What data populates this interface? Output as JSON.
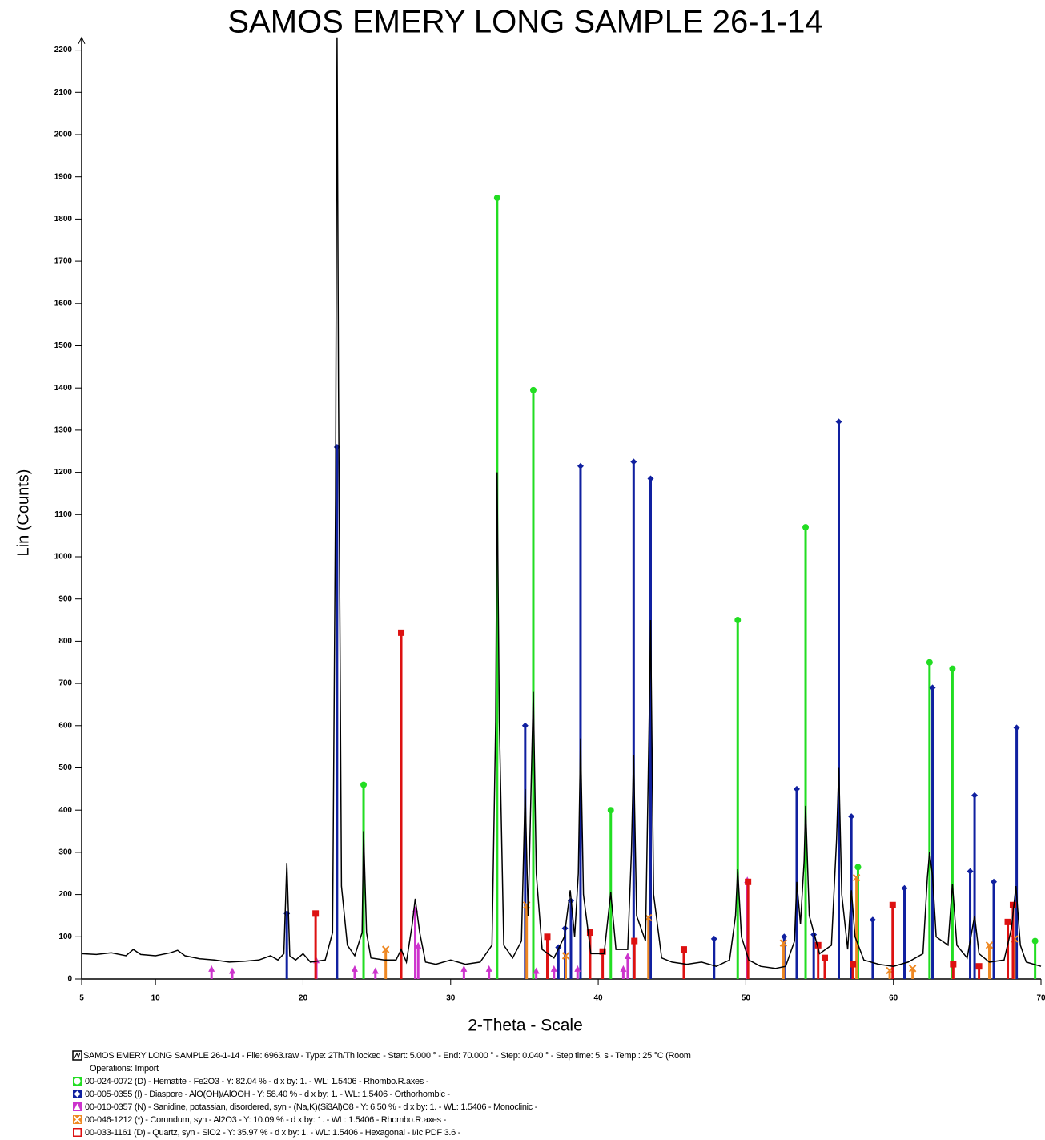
{
  "chart_data": {
    "type": "line",
    "title": "SAMOS EMERY LONG SAMPLE 26-1-14",
    "x_label": "2-Theta - Scale",
    "y_label": "Lin (Counts)",
    "xlim": [
      5,
      70
    ],
    "xticks": [
      5,
      10,
      20,
      30,
      40,
      50,
      60,
      70
    ],
    "ylim": [
      0,
      2230
    ],
    "yticks": [
      0,
      100,
      200,
      300,
      400,
      500,
      600,
      700,
      800,
      900,
      1000,
      1100,
      1200,
      1300,
      1400,
      1500,
      1600,
      1700,
      1800,
      1900,
      2000,
      2100,
      2200
    ],
    "x": [
      5,
      6,
      7,
      8,
      8.5,
      9,
      10,
      11,
      11.5,
      12,
      13,
      14,
      15,
      16,
      17,
      17.8,
      18.3,
      18.7,
      18.9,
      19.1,
      19.5,
      20,
      20.5,
      21.5,
      22,
      22.2,
      22.3,
      22.4,
      22.6,
      23,
      23.5,
      24,
      24.1,
      24.3,
      24.6,
      25.5,
      26.3,
      26.65,
      27,
      27.4,
      27.6,
      27.9,
      28.3,
      29,
      30,
      31,
      32,
      32.8,
      33.05,
      33.15,
      33.3,
      33.6,
      34.2,
      34.8,
      35.05,
      35.25,
      35.6,
      35.8,
      36.2,
      37,
      37.7,
      38.1,
      38.4,
      38.65,
      38.8,
      39,
      39.5,
      40.4,
      40.85,
      41.2,
      42,
      42.25,
      42.4,
      42.6,
      43.2,
      43.45,
      43.55,
      43.75,
      44.3,
      45,
      46,
      47,
      48,
      48.9,
      49.3,
      49.45,
      49.7,
      50.2,
      51,
      52,
      52.7,
      53.3,
      53.45,
      53.7,
      53.95,
      54.05,
      54.3,
      55,
      55.8,
      56.15,
      56.3,
      56.5,
      56.9,
      57.15,
      57.4,
      58,
      59,
      60,
      61,
      62,
      62.3,
      62.45,
      62.65,
      62.9,
      63.7,
      64,
      64.3,
      65,
      65.5,
      65.8,
      66.5,
      67.5,
      68,
      68.3,
      68.6,
      69,
      70
    ],
    "series": [
      {
        "name": "SAMOS EMERY LONG SAMPLE 26-1-14 - File: 6963.raw - Type: 2Th/Th locked - Start: 5.000 ° - End: 70.000 ° - Step: 0.040 ° - Step time: 5. s - Temp.: 25 °C (Room",
        "color": "#000000",
        "values": [
          60,
          58,
          62,
          55,
          70,
          58,
          55,
          62,
          68,
          55,
          48,
          45,
          40,
          42,
          45,
          55,
          45,
          60,
          275,
          55,
          45,
          60,
          40,
          45,
          110,
          1140,
          2240,
          1400,
          220,
          80,
          55,
          110,
          350,
          110,
          50,
          45,
          45,
          70,
          40,
          130,
          190,
          110,
          40,
          35,
          45,
          35,
          40,
          80,
          610,
          1200,
          610,
          80,
          50,
          90,
          450,
          150,
          680,
          250,
          70,
          50,
          100,
          210,
          100,
          250,
          570,
          200,
          60,
          60,
          205,
          70,
          70,
          300,
          530,
          150,
          90,
          620,
          850,
          200,
          50,
          40,
          35,
          40,
          30,
          45,
          150,
          260,
          100,
          45,
          30,
          25,
          30,
          90,
          230,
          130,
          280,
          410,
          150,
          60,
          80,
          330,
          500,
          200,
          70,
          210,
          100,
          45,
          35,
          30,
          40,
          60,
          240,
          300,
          245,
          100,
          80,
          225,
          80,
          50,
          150,
          60,
          40,
          45,
          120,
          220,
          80,
          40,
          30
        ]
      }
    ],
    "operations": "Operations: Import",
    "phases": [
      {
        "name": "00-024-0072 (D) - Hematite - Fe2O3 - Y: 82.04 % - d x by: 1. - WL: 1.5406 - Rhombo.R.axes -",
        "color": "#22dd22",
        "marker": "circle",
        "positions": [
          24.1,
          33.15,
          35.6,
          40.85,
          49.45,
          54.05,
          57.6,
          62.45,
          64.0,
          69.6
        ],
        "values": [
          460,
          1850,
          1395,
          400,
          850,
          1070,
          265,
          750,
          735,
          90
        ]
      },
      {
        "name": "00-005-0355 (I) - Diaspore - AlO(OH)/AlOOH - Y: 58.40 % - d x by: 1. - WL: 1.5406 - Orthorhombic -",
        "color": "#1020a0",
        "marker": "diamond",
        "positions": [
          18.9,
          22.3,
          35.05,
          37.3,
          37.75,
          38.15,
          38.8,
          42.4,
          43.55,
          47.85,
          52.6,
          53.45,
          54.6,
          56.3,
          57.15,
          58.6,
          60.75,
          62.65,
          65.2,
          65.5,
          66.8,
          68.35
        ],
        "values": [
          155,
          1260,
          600,
          75,
          120,
          185,
          1215,
          1225,
          1185,
          95,
          100,
          450,
          105,
          1320,
          385,
          140,
          215,
          690,
          255,
          435,
          230,
          595
        ]
      },
      {
        "name": "00-010-0357 (N) - Sanidine, potassian, disordered, syn - (Na,K)(Si3Al)O8 - Y: 6.50 % - d x by: 1. - WL: 1.5406 - Monoclinic -",
        "color": "#cc33cc",
        "marker": "triangle",
        "positions": [
          13.8,
          15.2,
          20.9,
          23.5,
          24.9,
          27.6,
          27.8,
          30.9,
          32.6,
          35.8,
          37.0,
          38.6,
          41.7,
          42.0,
          50.1
        ],
        "values": [
          25,
          20,
          45,
          25,
          20,
          165,
          80,
          25,
          25,
          20,
          25,
          25,
          25,
          55,
          235
        ]
      },
      {
        "name": "00-046-1212 (*) - Corundum, syn - Al2O3 - Y: 10.09 % - d x by: 1. - WL: 1.5406 - Rhombo.R.axes -",
        "color": "#ee8822",
        "marker": "cross",
        "positions": [
          25.6,
          35.15,
          37.8,
          43.4,
          52.55,
          57.5,
          59.75,
          61.3,
          66.5,
          68.2
        ],
        "values": [
          70,
          175,
          55,
          145,
          85,
          240,
          20,
          25,
          80,
          95
        ]
      },
      {
        "name": "00-033-1161 (D) - Quartz, syn - SiO2 - Y: 35.97 % - d x by: 1. - WL: 1.5406 - Hexagonal - I/Ic PDF 3.6 -",
        "color": "#dd1111",
        "marker": "square",
        "positions": [
          20.85,
          26.65,
          36.55,
          39.45,
          40.3,
          42.45,
          45.8,
          50.15,
          54.9,
          55.35,
          57.25,
          59.95,
          64.05,
          65.8,
          67.75,
          68.1
        ],
        "values": [
          155,
          820,
          100,
          110,
          65,
          90,
          70,
          230,
          80,
          50,
          35,
          175,
          35,
          30,
          135,
          175
        ]
      }
    ]
  }
}
